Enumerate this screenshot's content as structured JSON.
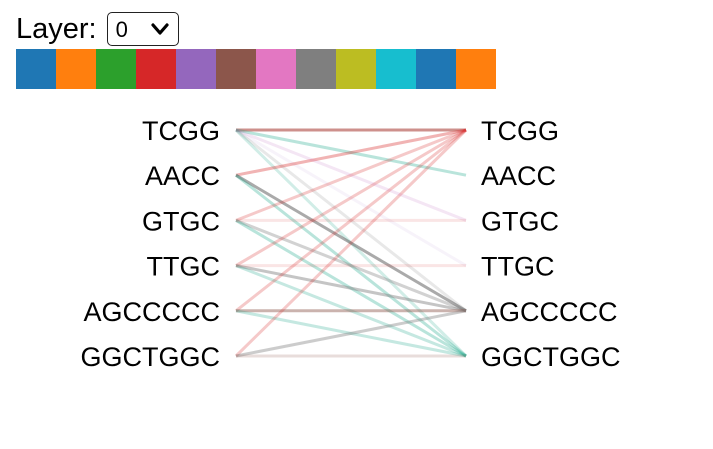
{
  "layer_control": {
    "label": "Layer:",
    "selected": "0"
  },
  "head_colors": [
    "#1f77b4",
    "#ff7f0e",
    "#2ca02c",
    "#d62728",
    "#9467bd",
    "#8c564b",
    "#e377c2",
    "#7f7f7f",
    "#bcbd22",
    "#17becf",
    "#1f77b4",
    "#ff7f0e"
  ],
  "left_tokens": [
    "TCGG",
    "AACC",
    "GTGC",
    "TTGC",
    "AGCCCCC",
    "GGCTGGC"
  ],
  "right_tokens": [
    "TCGG",
    "AACC",
    "GTGC",
    "TTGC",
    "AGCCCCC",
    "GGCTGGC"
  ],
  "attention_links": [
    {
      "from": 0,
      "to": 0,
      "color": "#8c564b",
      "opacity": 0.45
    },
    {
      "from": 0,
      "to": 0,
      "color": "#d62728",
      "opacity": 0.25
    },
    {
      "from": 0,
      "to": 1,
      "color": "#17a589",
      "opacity": 0.3
    },
    {
      "from": 0,
      "to": 2,
      "color": "#9467bd",
      "opacity": 0.08
    },
    {
      "from": 0,
      "to": 3,
      "color": "#9467bd",
      "opacity": 0.08
    },
    {
      "from": 0,
      "to": 4,
      "color": "#7f7f7f",
      "opacity": 0.18
    },
    {
      "from": 0,
      "to": 5,
      "color": "#17a589",
      "opacity": 0.2
    },
    {
      "from": 1,
      "to": 0,
      "color": "#d62728",
      "opacity": 0.35
    },
    {
      "from": 1,
      "to": 4,
      "color": "#555555",
      "opacity": 0.5
    },
    {
      "from": 1,
      "to": 5,
      "color": "#17a589",
      "opacity": 0.3
    },
    {
      "from": 2,
      "to": 0,
      "color": "#d62728",
      "opacity": 0.25
    },
    {
      "from": 2,
      "to": 4,
      "color": "#7f7f7f",
      "opacity": 0.35
    },
    {
      "from": 2,
      "to": 5,
      "color": "#17a589",
      "opacity": 0.3
    },
    {
      "from": 3,
      "to": 0,
      "color": "#d62728",
      "opacity": 0.25
    },
    {
      "from": 3,
      "to": 4,
      "color": "#7f7f7f",
      "opacity": 0.45
    },
    {
      "from": 3,
      "to": 5,
      "color": "#17a589",
      "opacity": 0.25
    },
    {
      "from": 4,
      "to": 0,
      "color": "#d62728",
      "opacity": 0.25
    },
    {
      "from": 4,
      "to": 4,
      "color": "#8c564b",
      "opacity": 0.45
    },
    {
      "from": 4,
      "to": 5,
      "color": "#17a589",
      "opacity": 0.25
    },
    {
      "from": 5,
      "to": 0,
      "color": "#d62728",
      "opacity": 0.25
    },
    {
      "from": 5,
      "to": 4,
      "color": "#7f7f7f",
      "opacity": 0.4
    },
    {
      "from": 5,
      "to": 5,
      "color": "#8c564b",
      "opacity": 0.2
    },
    {
      "from": 0,
      "to": 2,
      "color": "#e377c2",
      "opacity": 0.1
    },
    {
      "from": 2,
      "to": 2,
      "color": "#d62728",
      "opacity": 0.12
    },
    {
      "from": 3,
      "to": 3,
      "color": "#d62728",
      "opacity": 0.12
    }
  ]
}
